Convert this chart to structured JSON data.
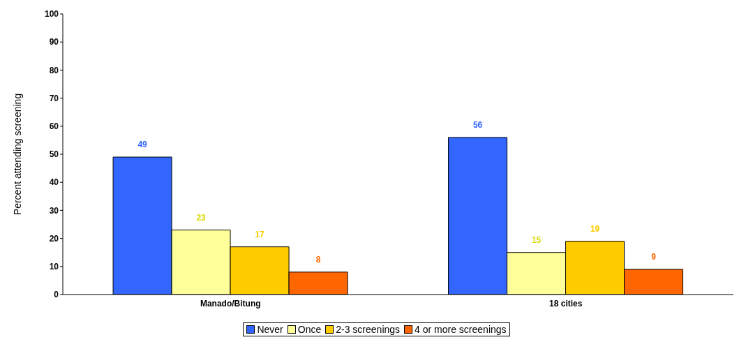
{
  "chart_data": {
    "type": "bar",
    "ylabel": "Percent attending screening",
    "categories": [
      "Manado/Bitung",
      "18 cities"
    ],
    "series": [
      {
        "name": "Never",
        "color": "#3366ff",
        "values": [
          49,
          56
        ]
      },
      {
        "name": "Once",
        "color": "#ffff99",
        "values": [
          23,
          15
        ]
      },
      {
        "name": "2-3 screenings",
        "color": "#ffcc00",
        "values": [
          17,
          19
        ]
      },
      {
        "name": "4 or more screenings",
        "color": "#ff6600",
        "values": [
          8,
          9
        ]
      }
    ],
    "ylim": [
      0,
      100
    ],
    "yticks": [
      0,
      10,
      20,
      30,
      40,
      50,
      60,
      70,
      80,
      90,
      100
    ],
    "grid": false,
    "legend": "bottom",
    "data_labels": true
  }
}
